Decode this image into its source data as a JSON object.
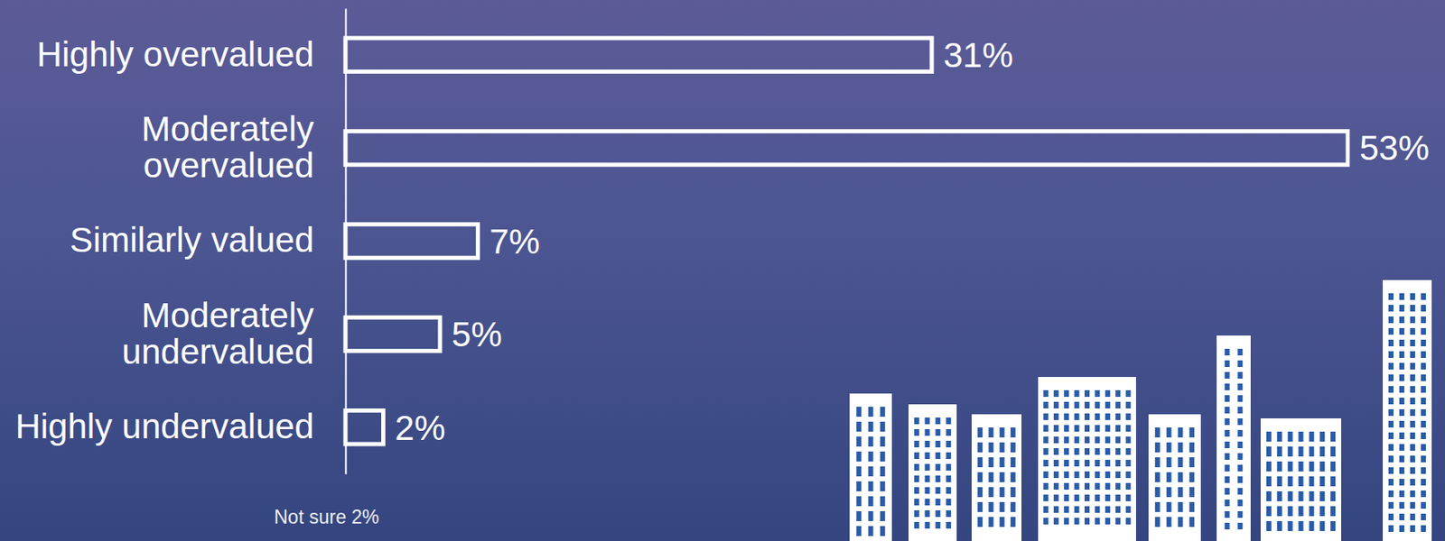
{
  "chart_data": {
    "type": "bar",
    "orientation": "horizontal",
    "categories": [
      "Highly overvalued",
      "Moderately overvalued",
      "Similarly valued",
      "Moderately undervalued",
      "Highly undervalued"
    ],
    "values": [
      31,
      53,
      7,
      5,
      2
    ],
    "value_labels": [
      "31%",
      "53%",
      "7%",
      "5%",
      "2%"
    ],
    "data_labels": true,
    "xlim": [
      0,
      53
    ],
    "tick_labels": "y",
    "color": "#ffffff",
    "annotations": [
      "Not sure 2%"
    ]
  }
}
